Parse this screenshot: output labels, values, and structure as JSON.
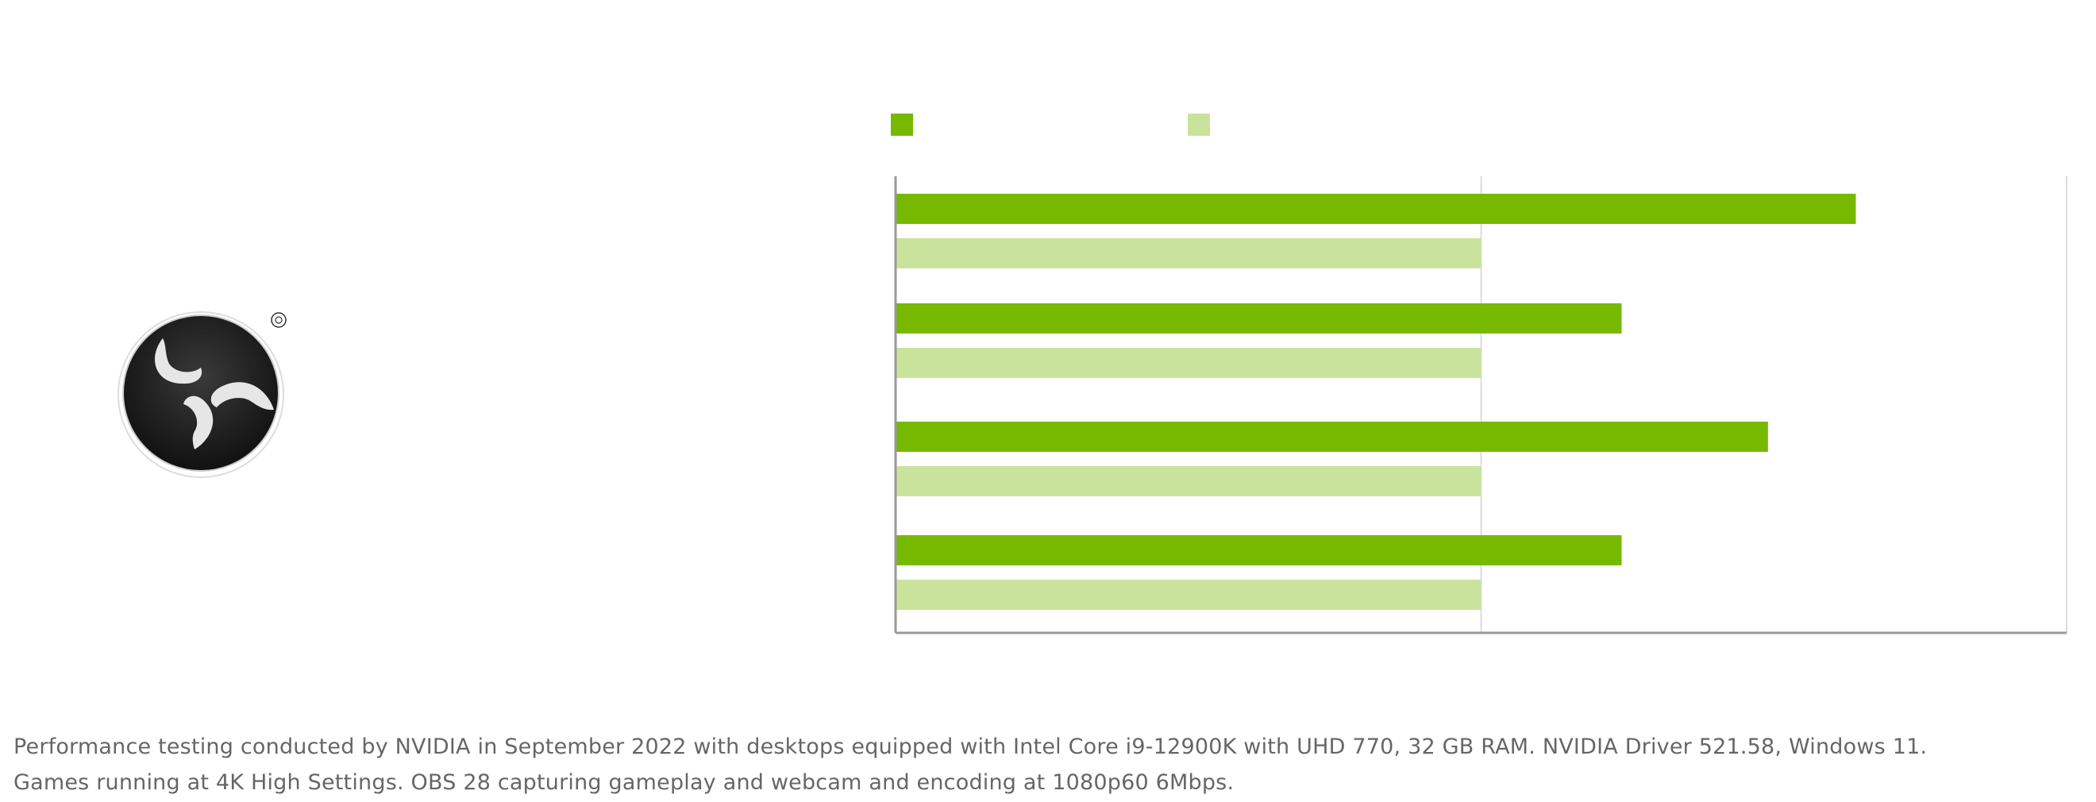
{
  "chart_data": {
    "type": "bar",
    "orientation": "horizontal",
    "categories": [
      "",
      "",
      "",
      ""
    ],
    "series": [
      {
        "name": "",
        "color": "#76b900",
        "values": [
          1.64,
          1.24,
          1.49,
          1.24
        ]
      },
      {
        "name": "",
        "color": "#cae39c",
        "values": [
          1.0,
          1.0,
          1.0,
          1.0
        ]
      }
    ],
    "xlim": [
      0,
      2
    ],
    "gridlines": [
      1,
      2
    ],
    "legend": "top"
  },
  "logo": {
    "name": "OBS Studio logo"
  },
  "footnote": {
    "line1": "Performance testing conducted by NVIDIA in September 2022 with desktops equipped with Intel Core i9-12900K with UHD 770, 32 GB RAM. NVIDIA Driver 521.58, Windows 11.",
    "line2": "Games running at 4K High Settings. OBS 28 capturing gameplay and webcam and encoding at 1080p60 6Mbps."
  }
}
